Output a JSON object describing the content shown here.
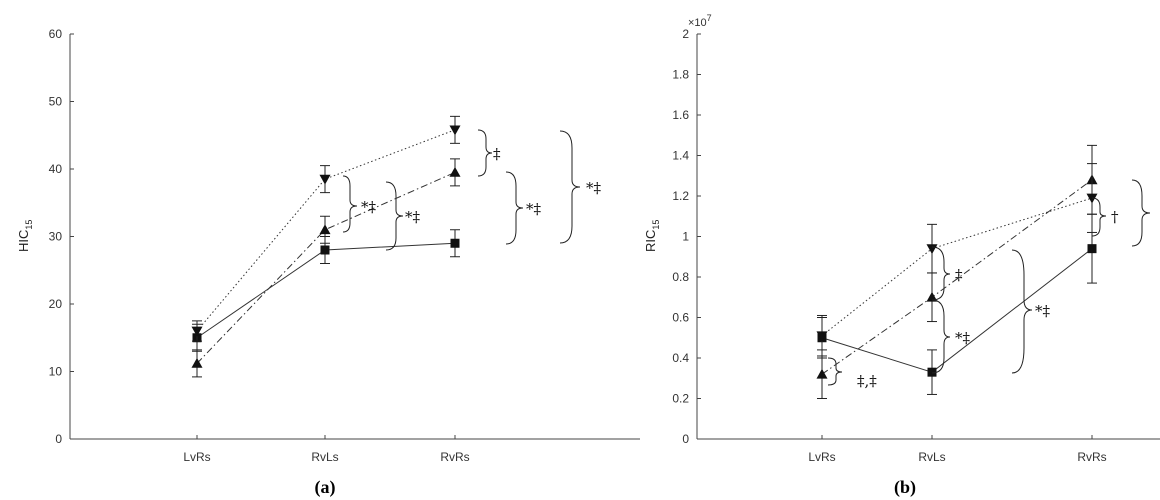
{
  "chart_data": [
    {
      "type": "line",
      "panel_label": "(a)",
      "ylabel_main": "HIC",
      "ylabel_sub": "15",
      "categories": [
        "LvRs",
        "RvLs",
        "RvRs"
      ],
      "ylim": [
        0,
        60
      ],
      "yticks": [
        "0",
        "10",
        "20",
        "30",
        "40",
        "50",
        "60"
      ],
      "grid": false,
      "series": [
        {
          "marker": "square",
          "linestyle": "solid",
          "values": [
            15.0,
            28.0,
            29.0
          ],
          "errors": [
            2.0,
            2.0,
            2.0
          ]
        },
        {
          "marker": "triangle-up",
          "linestyle": "dashdot",
          "values": [
            11.2,
            31.0,
            39.5
          ],
          "errors": [
            2.0,
            2.0,
            2.0
          ]
        },
        {
          "marker": "triangle-down",
          "linestyle": "dotted",
          "values": [
            16.0,
            38.5,
            45.8
          ],
          "errors": [
            1.5,
            2.0,
            2.0
          ]
        }
      ],
      "annotations": [
        "‡",
        "*‡",
        "*‡",
        "*‡",
        "*‡"
      ]
    },
    {
      "type": "line",
      "panel_label": "(b)",
      "ylabel_main": "RIC",
      "ylabel_sub": "15",
      "y_exponent": "×10",
      "y_exponent_power": "7",
      "categories": [
        "LvRs",
        "RvLs",
        "RvRs"
      ],
      "ylim": [
        0,
        2
      ],
      "yticks": [
        "0",
        "0.2",
        "0.4",
        "0.6",
        "0.8",
        "1",
        "1.2",
        "1.4",
        "1.6",
        "1.8",
        "2"
      ],
      "grid": false,
      "series": [
        {
          "marker": "square",
          "linestyle": "solid",
          "values": [
            0.5,
            0.33,
            0.94
          ],
          "errors": [
            0.1,
            0.11,
            0.17
          ]
        },
        {
          "marker": "triangle-up",
          "linestyle": "dashdot",
          "values": [
            0.32,
            0.7,
            1.28
          ],
          "errors": [
            0.12,
            0.12,
            0.17
          ]
        },
        {
          "marker": "triangle-down",
          "linestyle": "dotted",
          "values": [
            0.51,
            0.94,
            1.19
          ],
          "errors": [
            0.1,
            0.12,
            0.17
          ]
        }
      ],
      "annotations": [
        "‡,‡",
        "‡",
        "*‡",
        "*‡",
        "†"
      ]
    }
  ]
}
